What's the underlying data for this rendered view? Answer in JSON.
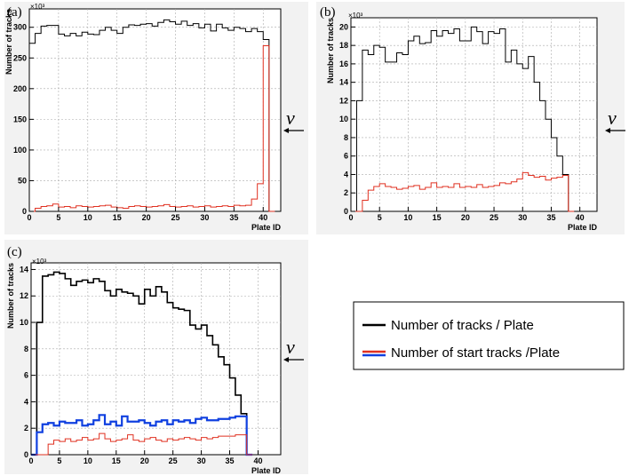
{
  "chart_data": [
    {
      "type": "line",
      "panel_label": "(a)",
      "xlabel": "Plate ID",
      "ylabel": "Number of tracks",
      "multiplier": "×10³",
      "xlim": [
        0,
        43
      ],
      "ylim": [
        0,
        330
      ],
      "xticks": [
        0,
        5,
        10,
        15,
        20,
        25,
        30,
        35,
        40
      ],
      "yticks": [
        0,
        50,
        100,
        150,
        200,
        250,
        300
      ],
      "grid": true,
      "arrow_label": "ν",
      "series": [
        {
          "color": "#000000",
          "x": [
            0,
            1,
            2,
            3,
            4,
            5,
            6,
            7,
            8,
            9,
            10,
            11,
            12,
            13,
            14,
            15,
            16,
            17,
            18,
            19,
            20,
            21,
            22,
            23,
            24,
            25,
            26,
            27,
            28,
            29,
            30,
            31,
            32,
            33,
            34,
            35,
            36,
            37,
            38,
            39,
            40,
            41
          ],
          "values": [
            274,
            290,
            302,
            303,
            303,
            289,
            286,
            290,
            286,
            292,
            289,
            288,
            295,
            300,
            295,
            290,
            300,
            304,
            303,
            305,
            306,
            302,
            308,
            312,
            309,
            305,
            310,
            303,
            306,
            299,
            305,
            294,
            305,
            299,
            295,
            300,
            298,
            293,
            298,
            293,
            280,
            0
          ]
        },
        {
          "color": "#e03020",
          "x": [
            0,
            1,
            2,
            3,
            4,
            5,
            6,
            7,
            8,
            9,
            10,
            11,
            12,
            13,
            14,
            15,
            16,
            17,
            18,
            19,
            20,
            21,
            22,
            23,
            24,
            25,
            26,
            27,
            28,
            29,
            30,
            31,
            32,
            33,
            34,
            35,
            36,
            37,
            38,
            39,
            40,
            41
          ],
          "values": [
            0,
            5,
            8,
            9,
            12,
            7,
            8,
            6,
            9,
            8,
            7,
            8,
            9,
            10,
            7,
            6,
            5,
            8,
            9,
            8,
            7,
            8,
            9,
            11,
            8,
            7,
            8,
            9,
            7,
            8,
            9,
            7,
            8,
            9,
            8,
            10,
            9,
            10,
            20,
            45,
            270,
            0
          ]
        }
      ]
    },
    {
      "type": "line",
      "panel_label": "(b)",
      "xlabel": "Plate ID",
      "ylabel": "Number of tracks",
      "multiplier": "×10³",
      "xlim": [
        0,
        43
      ],
      "ylim": [
        0,
        21
      ],
      "xticks": [
        0,
        5,
        10,
        15,
        20,
        25,
        30,
        35,
        40
      ],
      "yticks": [
        0,
        2,
        4,
        6,
        8,
        10,
        12,
        14,
        16,
        18,
        20
      ],
      "grid": true,
      "arrow_label": "ν",
      "series": [
        {
          "color": "#000000",
          "x": [
            0,
            1,
            2,
            3,
            4,
            5,
            6,
            7,
            8,
            9,
            10,
            11,
            12,
            13,
            14,
            15,
            16,
            17,
            18,
            19,
            20,
            21,
            22,
            23,
            24,
            25,
            26,
            27,
            28,
            29,
            30,
            31,
            32,
            33,
            34,
            35,
            36,
            37,
            38
          ],
          "values": [
            0,
            12,
            17.5,
            17,
            18,
            17.8,
            16.2,
            16.2,
            17.2,
            17,
            18.5,
            19,
            18.2,
            18.3,
            19.6,
            19,
            19.6,
            19.3,
            19.8,
            18.5,
            18.5,
            20,
            19.5,
            18.2,
            19.5,
            19.3,
            19.8,
            16.2,
            17.5,
            16,
            15.5,
            16.8,
            14,
            12,
            10,
            8,
            6,
            4,
            0
          ]
        },
        {
          "color": "#e03020",
          "x": [
            0,
            1,
            2,
            3,
            4,
            5,
            6,
            7,
            8,
            9,
            10,
            11,
            12,
            13,
            14,
            15,
            16,
            17,
            18,
            19,
            20,
            21,
            22,
            23,
            24,
            25,
            26,
            27,
            28,
            29,
            30,
            31,
            32,
            33,
            34,
            35,
            36,
            37,
            38
          ],
          "values": [
            0,
            0,
            1.2,
            2.3,
            2.7,
            3,
            2.7,
            2.6,
            2.4,
            2.5,
            2.7,
            2.8,
            2.4,
            2.6,
            3.1,
            2.6,
            2.7,
            2.6,
            3,
            2.6,
            2.7,
            2.6,
            2.9,
            2.6,
            2.7,
            2.8,
            3.1,
            3,
            3.2,
            3.5,
            4.2,
            3.9,
            3.7,
            3.8,
            3.4,
            3.6,
            3.7,
            3.9,
            0
          ]
        }
      ]
    },
    {
      "type": "line",
      "panel_label": "(c)",
      "xlabel": "Plate ID",
      "ylabel": "Number of tracks",
      "multiplier": "×10³",
      "xlim": [
        0,
        44
      ],
      "ylim": [
        0,
        14.5
      ],
      "xticks": [
        0,
        5,
        10,
        15,
        20,
        25,
        30,
        35,
        40
      ],
      "yticks": [
        0,
        2,
        4,
        6,
        8,
        10,
        12,
        14
      ],
      "grid": true,
      "arrow_label": "ν",
      "series": [
        {
          "color": "#000000",
          "x": [
            0,
            1,
            2,
            3,
            4,
            5,
            6,
            7,
            8,
            9,
            10,
            11,
            12,
            13,
            14,
            15,
            16,
            17,
            18,
            19,
            20,
            21,
            22,
            23,
            24,
            25,
            26,
            27,
            28,
            29,
            30,
            31,
            32,
            33,
            34,
            35,
            36,
            37,
            38
          ],
          "values": [
            0,
            10,
            13.5,
            13.6,
            13.8,
            13.7,
            13.3,
            12.8,
            13.1,
            13.2,
            13.0,
            13.3,
            13.1,
            12.4,
            12.0,
            12.5,
            12.3,
            12.2,
            12.0,
            11.4,
            12.5,
            12.0,
            12.7,
            12.3,
            11.5,
            11.1,
            11.0,
            10.9,
            9.8,
            9.5,
            9.8,
            9.0,
            8.3,
            7.4,
            6.8,
            5.8,
            4.5,
            3.1,
            0
          ]
        },
        {
          "color": "#1040e0",
          "x": [
            0,
            1,
            2,
            3,
            4,
            5,
            6,
            7,
            8,
            9,
            10,
            11,
            12,
            13,
            14,
            15,
            16,
            17,
            18,
            19,
            20,
            21,
            22,
            23,
            24,
            25,
            26,
            27,
            28,
            29,
            30,
            31,
            32,
            33,
            34,
            35,
            36,
            37,
            38
          ],
          "values": [
            0,
            1.7,
            2.3,
            2.4,
            2.2,
            2.5,
            2.4,
            2.4,
            2.6,
            2.2,
            2.3,
            2.6,
            3,
            2.3,
            2.5,
            2.2,
            2.9,
            2.5,
            2.5,
            2.6,
            2.4,
            2.2,
            2.5,
            2.6,
            2.3,
            2.6,
            2.5,
            2.6,
            2.4,
            2.7,
            2.8,
            2.6,
            2.6,
            2.7,
            2.7,
            2.8,
            2.9,
            2.9,
            0
          ]
        },
        {
          "color": "#e03020",
          "x": [
            0,
            1,
            2,
            3,
            4,
            5,
            6,
            7,
            8,
            9,
            10,
            11,
            12,
            13,
            14,
            15,
            16,
            17,
            18,
            19,
            20,
            21,
            22,
            23,
            24,
            25,
            26,
            27,
            28,
            29,
            30,
            31,
            32,
            33,
            34,
            35,
            36,
            37,
            38
          ],
          "values": [
            0,
            0,
            0,
            0.8,
            1.1,
            1.0,
            1.2,
            1.0,
            1.1,
            1.3,
            1.1,
            1.2,
            1.6,
            1.2,
            1.0,
            1.1,
            1.2,
            1.5,
            1.1,
            1.0,
            1.2,
            1.3,
            1.1,
            1.0,
            1.2,
            1.1,
            1.2,
            1.3,
            1.2,
            1.1,
            1.3,
            1.2,
            1.3,
            1.4,
            1.4,
            1.4,
            1.5,
            1.5,
            0
          ]
        }
      ]
    }
  ],
  "legend": {
    "entries": [
      {
        "label": "Number of tracks / Plate",
        "colors": [
          "#000000"
        ]
      },
      {
        "label": "Number of start tracks /Plate",
        "colors": [
          "#e03020",
          "#1040e0"
        ]
      }
    ]
  }
}
